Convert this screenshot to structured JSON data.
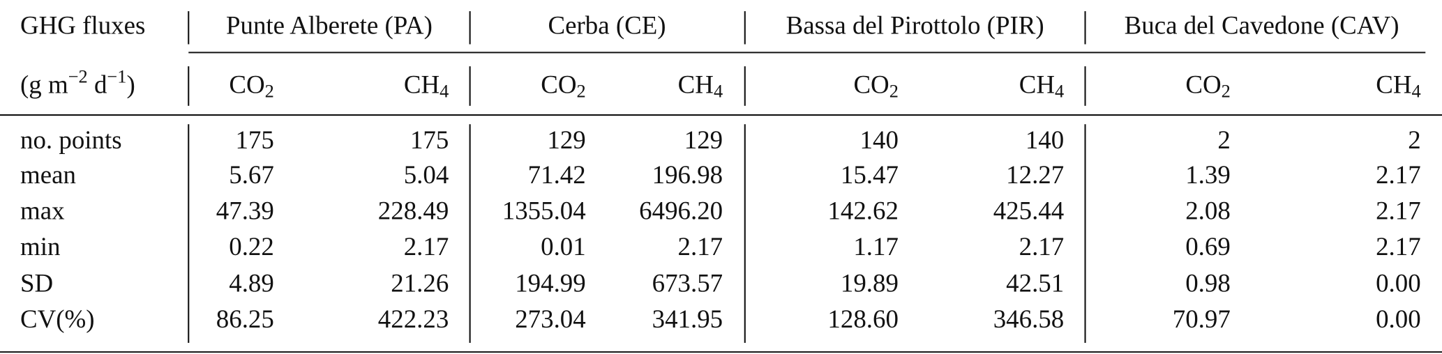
{
  "header": {
    "label": "GHG fluxes",
    "unit": [
      "(g m",
      "−2",
      " d",
      "−1",
      ")"
    ]
  },
  "groups": [
    {
      "name": "Punte Alberete (PA)",
      "columns": [
        {
          "base": "CO",
          "sub": "2"
        },
        {
          "base": "CH",
          "sub": "4"
        }
      ]
    },
    {
      "name": "Cerba (CE)",
      "columns": [
        {
          "base": "CO",
          "sub": "2"
        },
        {
          "base": "CH",
          "sub": "4"
        }
      ]
    },
    {
      "name": "Bassa del Pirottolo (PIR)",
      "columns": [
        {
          "base": "CO",
          "sub": "2"
        },
        {
          "base": "CH",
          "sub": "4"
        }
      ]
    },
    {
      "name": "Buca del Cavedone (CAV)",
      "columns": [
        {
          "base": "CO",
          "sub": "2"
        },
        {
          "base": "CH",
          "sub": "4"
        }
      ]
    }
  ],
  "rows": [
    {
      "label": "no. points",
      "values": [
        "175",
        "175",
        "129",
        "129",
        "140",
        "140",
        "2",
        "2"
      ]
    },
    {
      "label": "mean",
      "values": [
        "5.67",
        "5.04",
        "71.42",
        "196.98",
        "15.47",
        "12.27",
        "1.39",
        "2.17"
      ]
    },
    {
      "label": "max",
      "values": [
        "47.39",
        "228.49",
        "1355.04",
        "6496.20",
        "142.62",
        "425.44",
        "2.08",
        "2.17"
      ]
    },
    {
      "label": "min",
      "values": [
        "0.22",
        "2.17",
        "0.01",
        "2.17",
        "1.17",
        "2.17",
        "0.69",
        "2.17"
      ]
    },
    {
      "label": "SD",
      "values": [
        "4.89",
        "21.26",
        "194.99",
        "673.57",
        "19.89",
        "42.51",
        "0.98",
        "0.00"
      ]
    },
    {
      "label": "CV(%)",
      "values": [
        "86.25",
        "422.23",
        "273.04",
        "341.95",
        "128.60",
        "346.58",
        "70.97",
        "0.00"
      ]
    }
  ]
}
